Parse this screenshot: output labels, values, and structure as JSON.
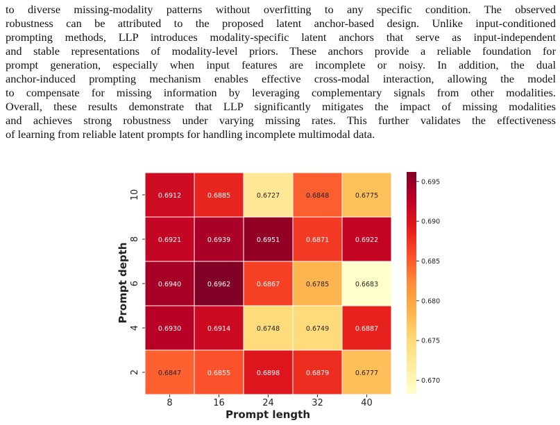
{
  "paragraph_lines": [
    "to diverse missing-modality patterns without overfitting to any specific condition.  The observed",
    "robustness can be attributed to the proposed latent anchor-based design. Unlike input-conditioned",
    "prompting methods, LLP introduces modality-specific latent anchors that serve as input-independent",
    "and stable representations of modality-level priors. These anchors provide a reliable foundation for",
    "prompt generation, especially when input features are incomplete or noisy.  In addition, the dual",
    "anchor-induced prompting mechanism enables effective cross-modal interaction, allowing the model",
    "to compensate for missing information by leveraging complementary signals from other modalities.",
    "Overall, these results demonstrate that LLP significantly mitigates the impact of missing modalities",
    "and achieves strong robustness under varying missing rates. This further validates the effectiveness",
    "of learning from reliable latent prompts for handling incomplete multimodal data."
  ],
  "chart_data": {
    "type": "heatmap",
    "xlabel": "Prompt length",
    "ylabel": "Prompt depth",
    "x_categories": [
      "8",
      "16",
      "24",
      "32",
      "40"
    ],
    "y_categories": [
      "10",
      "8",
      "6",
      "4",
      "2"
    ],
    "values": [
      [
        0.6912,
        0.6885,
        0.6727,
        0.6848,
        0.6775
      ],
      [
        0.6921,
        0.6939,
        0.6951,
        0.6871,
        0.6922
      ],
      [
        0.694,
        0.6962,
        0.6867,
        0.6785,
        0.6683
      ],
      [
        0.693,
        0.6914,
        0.6748,
        0.6749,
        0.6887
      ],
      [
        0.6847,
        0.6855,
        0.6898,
        0.6879,
        0.6777
      ]
    ],
    "value_labels": [
      [
        "0.6912",
        "0.6885",
        "0.6727",
        "0.6848",
        "0.6775"
      ],
      [
        "0.6921",
        "0.6939",
        "0.6951",
        "0.6871",
        "0.6922"
      ],
      [
        "0.6940",
        "0.6962",
        "0.6867",
        "0.6785",
        "0.6683"
      ],
      [
        "0.6930",
        "0.6914",
        "0.6748",
        "0.6749",
        "0.6887"
      ],
      [
        "0.6847",
        "0.6855",
        "0.6898",
        "0.6879",
        "0.6777"
      ]
    ],
    "colorscale": "YlOrRd",
    "colorbar_range": [
      0.6683,
      0.6962
    ],
    "colorbar_ticks": [
      0.67,
      0.675,
      0.68,
      0.685,
      0.69,
      0.695
    ],
    "colorbar_tick_labels": [
      "0.670",
      "0.675",
      "0.680",
      "0.685",
      "0.690",
      "0.695"
    ]
  }
}
